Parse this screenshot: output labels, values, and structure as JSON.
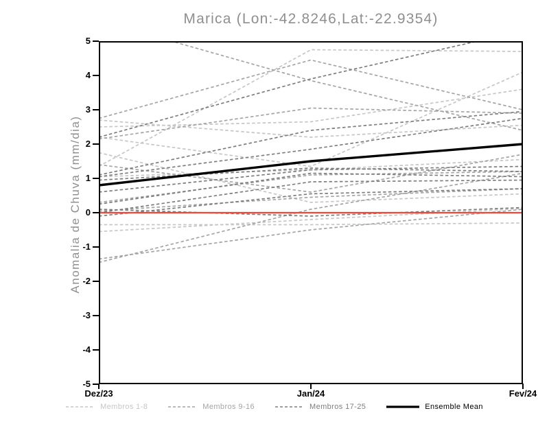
{
  "chart_data": {
    "type": "line",
    "title": "Marica (Lon:-42.8246,Lat:-22.9354)",
    "xlabel": "",
    "ylabel": "Anomalia de Chuva (mm/dia)",
    "x_categories": [
      "Dez/23",
      "Jan/24",
      "Fev/24"
    ],
    "ylim": [
      -5,
      5
    ],
    "yticks": [
      -5,
      -4,
      -3,
      -2,
      -1,
      0,
      1,
      2,
      3,
      4,
      5
    ],
    "grid": false,
    "legend_position": "bottom",
    "background_color": "#ffffff",
    "axis_color": "#000000",
    "title_color": "#8f8f8f",
    "zero_line": {
      "value": 0,
      "color": "#f94438"
    },
    "series": [
      {
        "name": "Membros 1-8",
        "color": "#c6c6c6",
        "style": "dashed",
        "members": [
          [
            1.35,
            4.75,
            4.7
          ],
          [
            2.2,
            1.35,
            4.1
          ],
          [
            2.5,
            2.65,
            3.6
          ],
          [
            2.7,
            2.2,
            2.55
          ],
          [
            1.05,
            1.25,
            1.55
          ],
          [
            -0.35,
            -0.35,
            -0.3
          ],
          [
            -0.55,
            -0.2,
            0.12
          ],
          [
            1.75,
            0.3,
            0.55
          ]
        ]
      },
      {
        "name": "Membros 9-16",
        "color": "#a4a4a4",
        "style": "dashed",
        "members": [
          [
            -1.45,
            0.1,
            1.15
          ],
          [
            -1.35,
            -0.5,
            0.1
          ],
          [
            5.6,
            3.85,
            2.4
          ],
          [
            2.75,
            4.45,
            3.0
          ],
          [
            1.4,
            0.6,
            1.7
          ],
          [
            0.3,
            1.1,
            1.2
          ],
          [
            0.05,
            0.45,
            0.7
          ],
          [
            2.15,
            3.05,
            2.9
          ]
        ]
      },
      {
        "name": "Membros 17-25",
        "color": "#7d7d7d",
        "style": "dashed",
        "members": [
          [
            2.2,
            3.9,
            5.3
          ],
          [
            1.1,
            2.4,
            2.95
          ],
          [
            1.05,
            1.85,
            2.75
          ],
          [
            0.95,
            1.3,
            1.2
          ],
          [
            0.6,
            1.25,
            1.35
          ],
          [
            0.25,
            1.15,
            1.05
          ],
          [
            0.1,
            -0.1,
            0.15
          ],
          [
            0.0,
            0.9,
            0.95
          ],
          [
            -0.1,
            0.55,
            0.7
          ]
        ]
      }
    ],
    "mean": {
      "name": "Ensemble Mean",
      "color": "#000000",
      "style": "solid",
      "values": [
        0.8,
        1.5,
        2.0
      ]
    }
  }
}
